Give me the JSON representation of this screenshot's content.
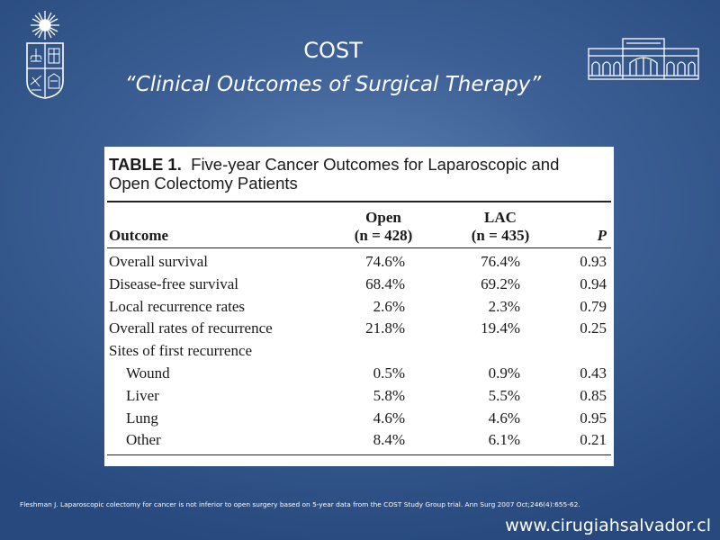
{
  "slide": {
    "title": "COST",
    "subtitle": "“Clinical Outcomes of Surgical Therapy”",
    "footnote": "Fleshman J. Laparoscopic colectomy for cancer is not inferior to open surgery based on 5-year data from the COST Study Group trial. Ann Surg 2007 Oct;246(4):655-62.",
    "website": "www.cirugiahsalvador.cl",
    "logos": {
      "left": "university-crest-icon",
      "right": "hospital-building-icon"
    }
  },
  "table": {
    "label": "TABLE 1.",
    "caption_line1": "Five-year Cancer Outcomes for Laparoscopic and",
    "caption_line2": "Open Colectomy Patients",
    "headers": {
      "outcome": "Outcome",
      "open": "Open",
      "open_n": "(n = 428)",
      "lac": "LAC",
      "lac_n": "(n = 435)",
      "p": "P"
    },
    "rows": [
      {
        "outcome": "Overall survival",
        "open": "74.6%",
        "lac": "76.4%",
        "p": "0.93"
      },
      {
        "outcome": "Disease-free survival",
        "open": "68.4%",
        "lac": "69.2%",
        "p": "0.94"
      },
      {
        "outcome": "Local recurrence rates",
        "open": "2.6%",
        "lac": "2.3%",
        "p": "0.79"
      },
      {
        "outcome": "Overall rates of recurrence",
        "open": "21.8%",
        "lac": "19.4%",
        "p": "0.25"
      },
      {
        "outcome": "Sites of first recurrence",
        "open": "",
        "lac": "",
        "p": ""
      },
      {
        "outcome": "Wound",
        "open": "0.5%",
        "lac": "0.9%",
        "p": "0.43"
      },
      {
        "outcome": "Liver",
        "open": "5.8%",
        "lac": "5.5%",
        "p": "0.85"
      },
      {
        "outcome": "Lung",
        "open": "4.6%",
        "lac": "4.6%",
        "p": "0.95"
      },
      {
        "outcome": "Other",
        "open": "8.4%",
        "lac": "6.1%",
        "p": "0.21"
      }
    ]
  }
}
